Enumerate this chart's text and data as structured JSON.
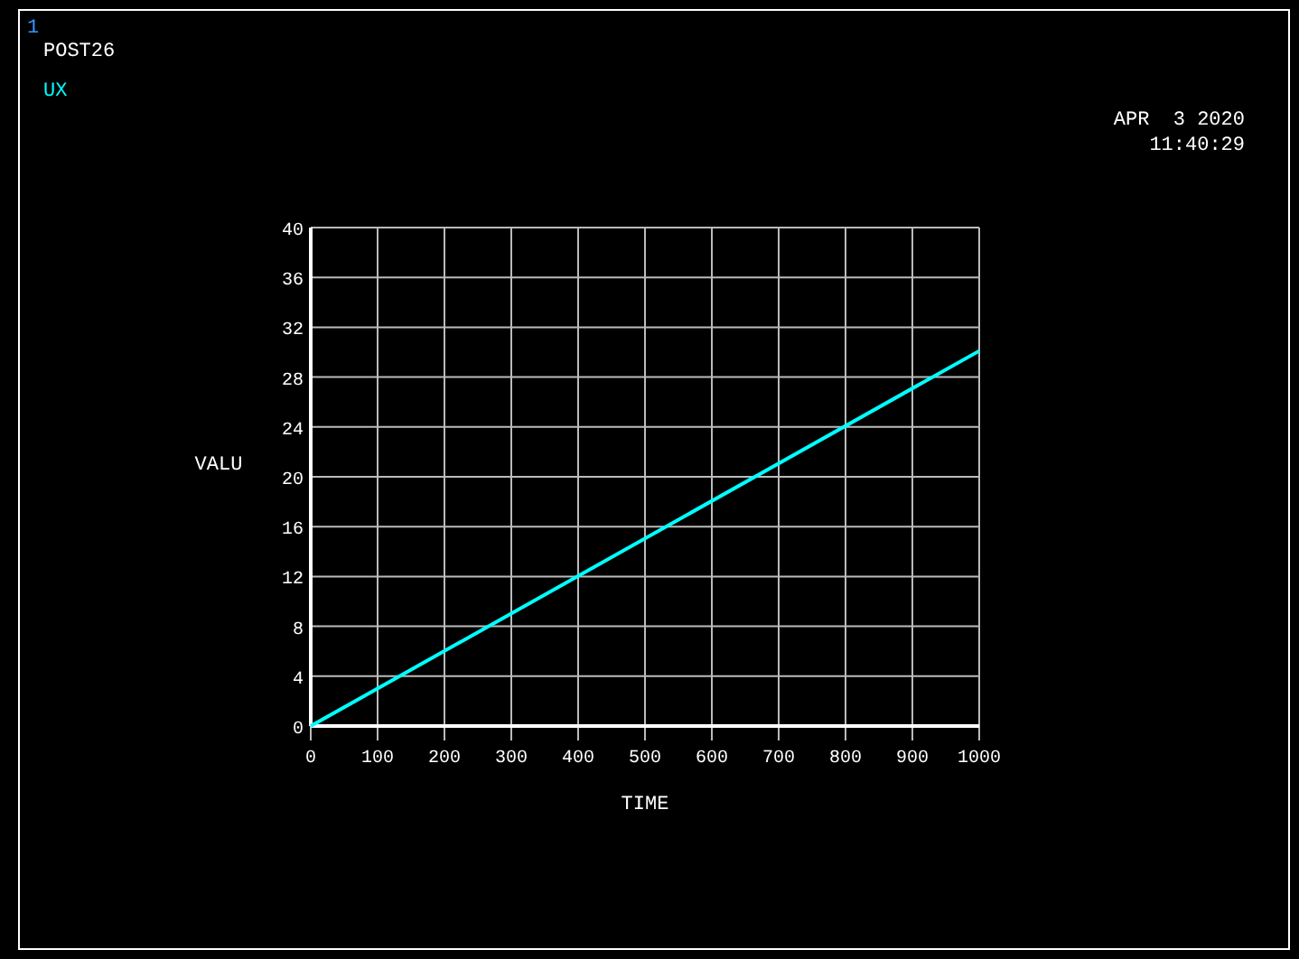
{
  "chart_data": {
    "type": "line",
    "xlabel": "TIME",
    "ylabel": "VALU",
    "annotations": [
      "1",
      "POST26",
      "APR  3 2020",
      "11:40:29"
    ],
    "series": [
      {
        "name": "UX",
        "color": "#00ffff",
        "x": [
          0,
          1000
        ],
        "values": [
          0,
          30.1
        ]
      }
    ],
    "xlim": [
      0,
      1000
    ],
    "xticks": [
      0,
      100,
      200,
      300,
      400,
      500,
      600,
      700,
      800,
      900,
      1000
    ],
    "ylim": [
      0,
      40
    ],
    "yticks": [
      0,
      4,
      8,
      12,
      16,
      20,
      24,
      28,
      32,
      36,
      40
    ],
    "grid": true,
    "legend": "top left",
    "marker": "none",
    "line_style": "solid"
  }
}
